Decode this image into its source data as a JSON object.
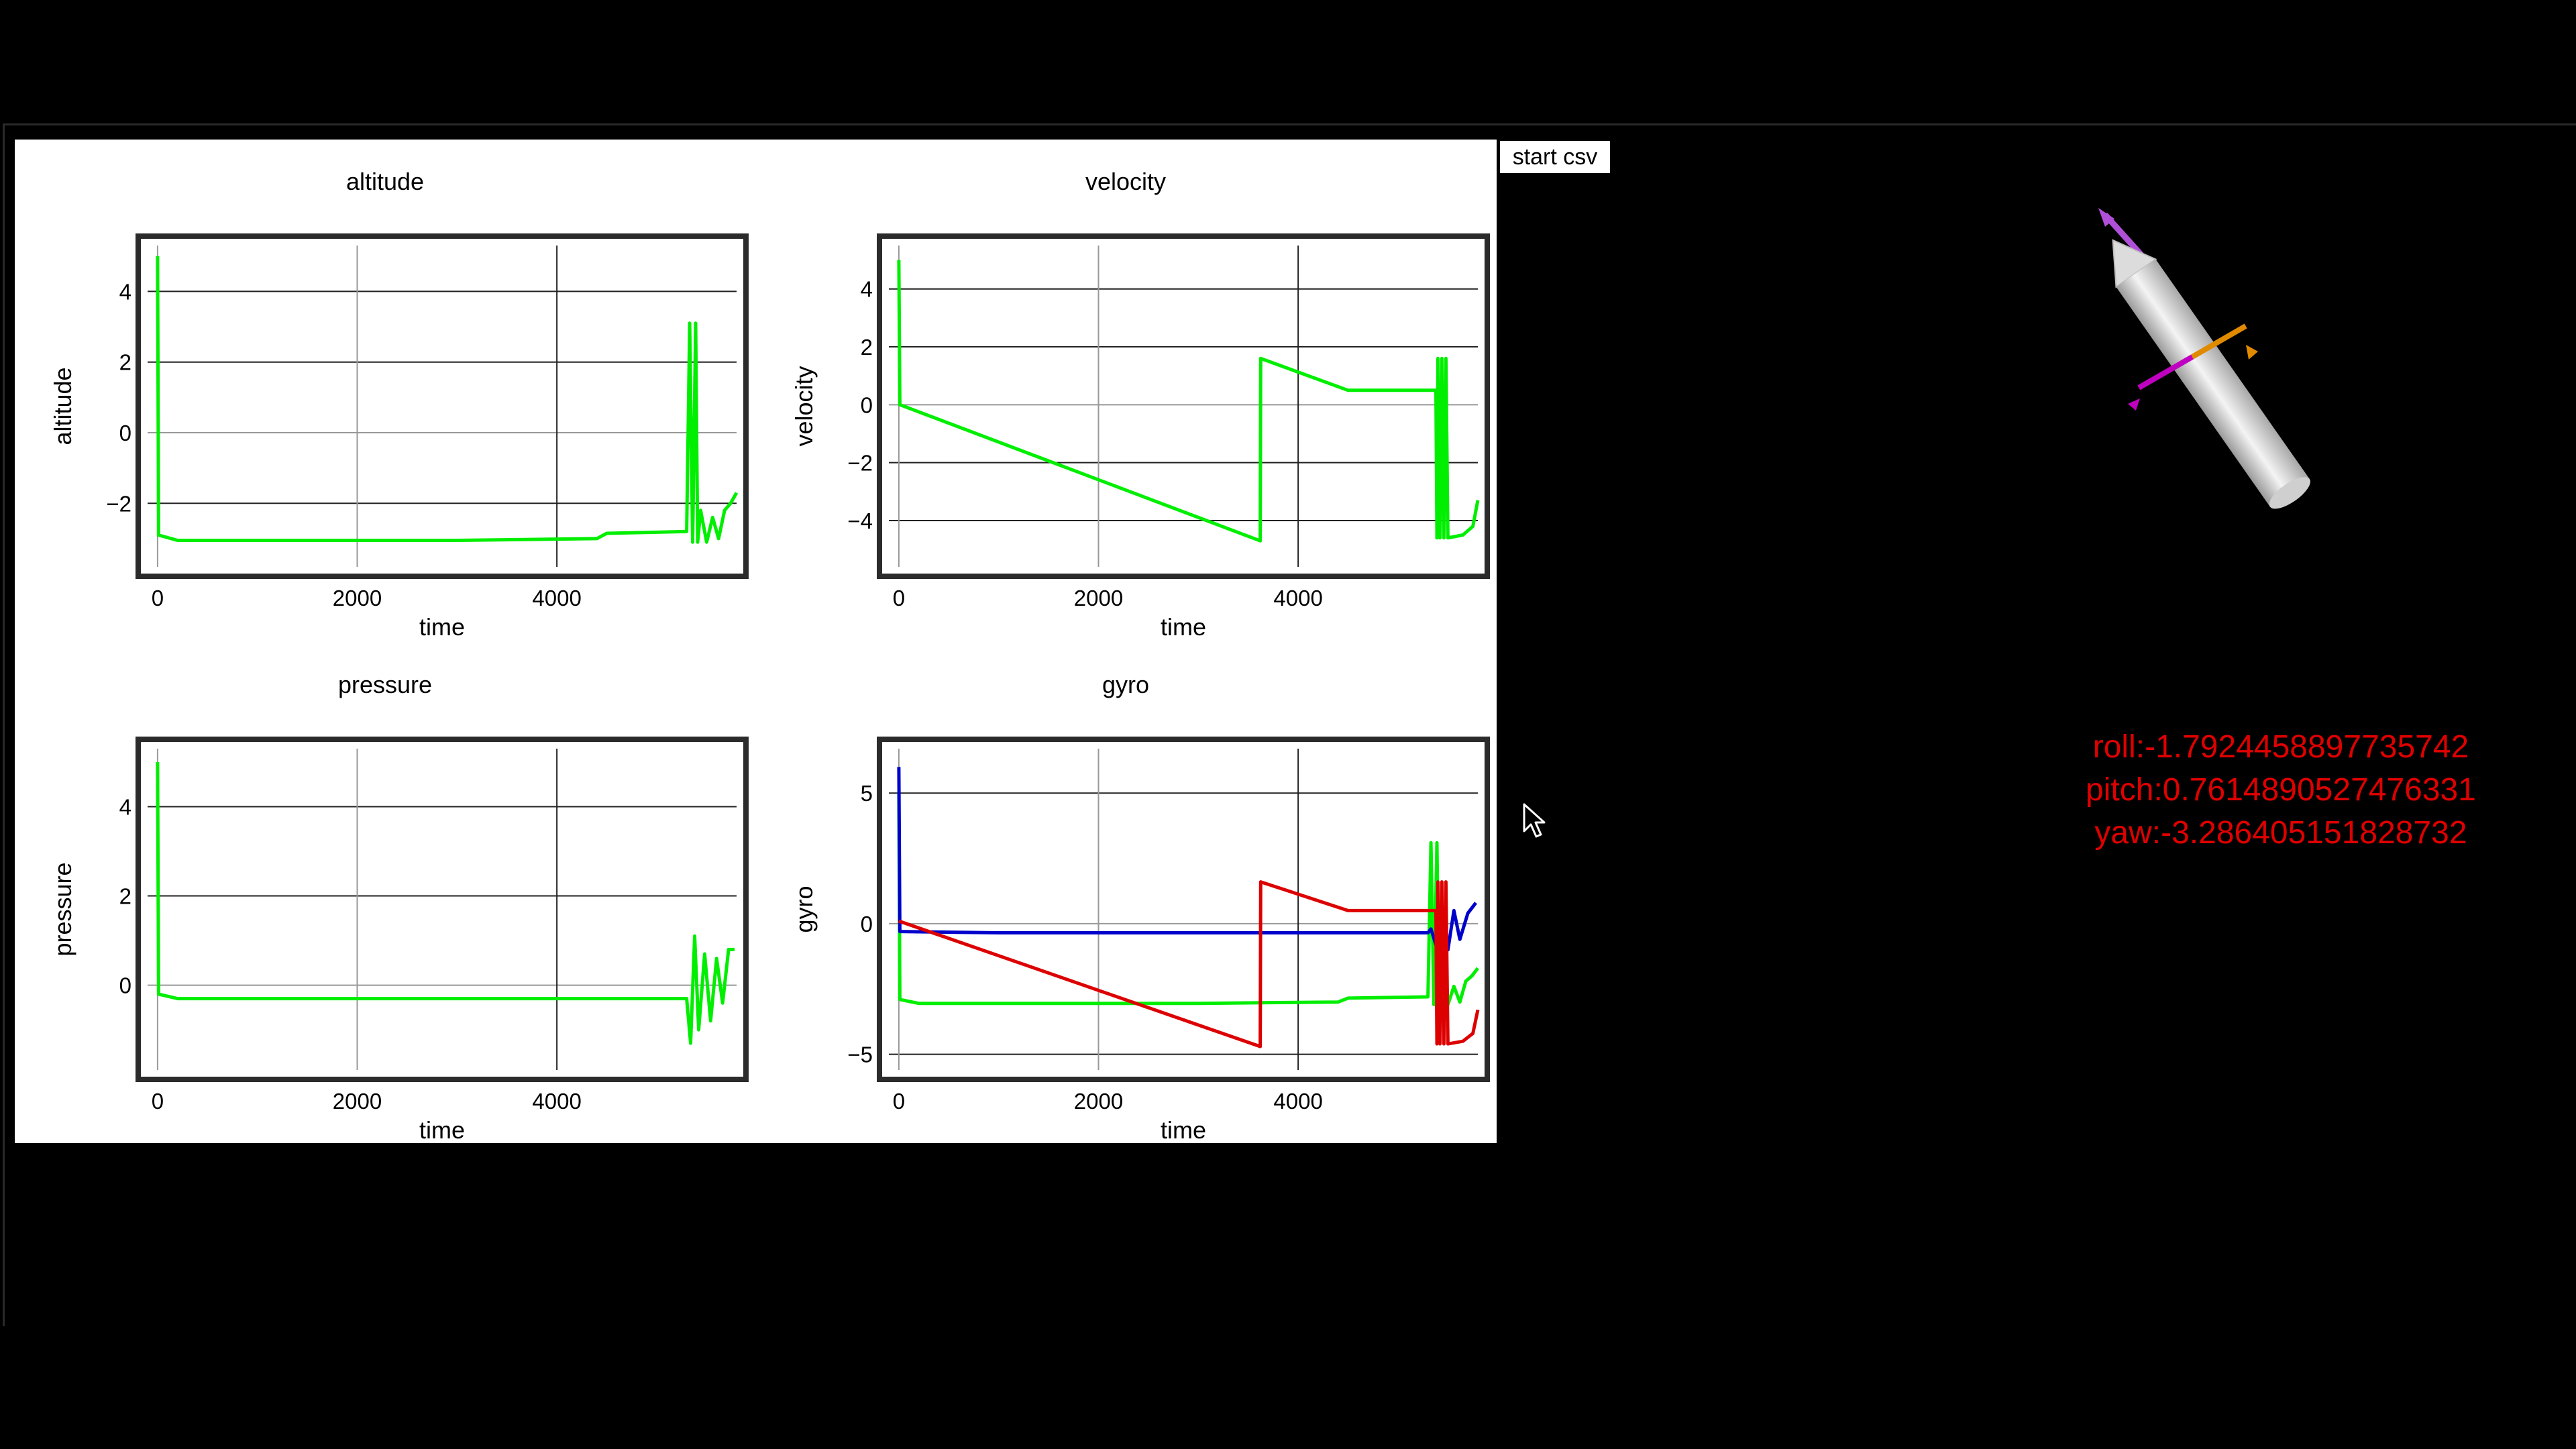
{
  "toolbar": {
    "start_csv_label": "start csv"
  },
  "orientation": {
    "roll": "roll:-1.7924458897735742",
    "pitch": "pitch:0.7614890527476331",
    "yaw": "yaw:-3.286405151828732"
  },
  "colors": {
    "altitude": "#00ee00",
    "gyro_x": "#00ee00",
    "gyro_y": "#0000cc",
    "gyro_z": "#dd0000",
    "orientation_text": "#e00000"
  },
  "icons": {
    "cursor": "mouse-pointer-icon",
    "rocket": "rocket-model"
  },
  "chart_data": [
    {
      "type": "line",
      "title": "altitude",
      "xlabel": "time",
      "ylabel": "altitude",
      "xlim": [
        -100,
        5800
      ],
      "ylim": [
        -3.8,
        5.3
      ],
      "xticks": [
        0,
        2000,
        4000
      ],
      "yticks": [
        -2,
        0,
        2,
        4
      ],
      "grid": true,
      "series": [
        {
          "color": "#00ee00",
          "points": [
            [
              0,
              5
            ],
            [
              10,
              -2.9
            ],
            [
              200,
              -3.05
            ],
            [
              1500,
              -3.05
            ],
            [
              3000,
              -3.05
            ],
            [
              4400,
              -3.0
            ],
            [
              4500,
              -2.85
            ],
            [
              5300,
              -2.8
            ],
            [
              5330,
              3.1
            ],
            [
              5360,
              -3.1
            ],
            [
              5390,
              3.1
            ],
            [
              5410,
              -3.1
            ],
            [
              5440,
              -2.2
            ],
            [
              5500,
              -3.1
            ],
            [
              5560,
              -2.4
            ],
            [
              5620,
              -3.0
            ],
            [
              5680,
              -2.2
            ],
            [
              5740,
              -2.0
            ],
            [
              5800,
              -1.7
            ]
          ]
        }
      ]
    },
    {
      "type": "line",
      "title": "velocity",
      "xlabel": "time",
      "ylabel": "velocity",
      "xlim": [
        -100,
        5800
      ],
      "ylim": [
        -5.6,
        5.5
      ],
      "xticks": [
        0,
        2000,
        4000
      ],
      "yticks": [
        -4,
        -2,
        0,
        2,
        4
      ],
      "grid": true,
      "series": [
        {
          "color": "#00ee00",
          "points": [
            [
              0,
              5
            ],
            [
              10,
              0
            ],
            [
              3620,
              -4.7
            ],
            [
              3625,
              1.6
            ],
            [
              4500,
              0.5
            ],
            [
              5380,
              0.5
            ],
            [
              5390,
              -4.6
            ],
            [
              5400,
              1.6
            ],
            [
              5420,
              -4.6
            ],
            [
              5440,
              1.6
            ],
            [
              5460,
              -4.6
            ],
            [
              5480,
              1.6
            ],
            [
              5500,
              -4.6
            ],
            [
              5650,
              -4.5
            ],
            [
              5750,
              -4.2
            ],
            [
              5800,
              -3.3
            ]
          ]
        }
      ]
    },
    {
      "type": "line",
      "title": "pressure",
      "xlabel": "time",
      "ylabel": "pressure",
      "xlim": [
        -100,
        5800
      ],
      "ylim": [
        -1.9,
        5.3
      ],
      "xticks": [
        0,
        2000,
        4000
      ],
      "yticks": [
        0,
        2,
        4
      ],
      "grid": true,
      "series": [
        {
          "color": "#00ee00",
          "points": [
            [
              0,
              5
            ],
            [
              10,
              -0.2
            ],
            [
              200,
              -0.3
            ],
            [
              2000,
              -0.3
            ],
            [
              4000,
              -0.3
            ],
            [
              5300,
              -0.3
            ],
            [
              5340,
              -1.3
            ],
            [
              5380,
              1.1
            ],
            [
              5420,
              -1.0
            ],
            [
              5480,
              0.7
            ],
            [
              5540,
              -0.8
            ],
            [
              5600,
              0.6
            ],
            [
              5660,
              -0.4
            ],
            [
              5720,
              0.8
            ],
            [
              5780,
              0.8
            ]
          ]
        }
      ]
    },
    {
      "type": "line",
      "title": "gyro",
      "xlabel": "time",
      "ylabel": "gyro",
      "xlim": [
        -100,
        5800
      ],
      "ylim": [
        -5.6,
        6.7
      ],
      "xticks": [
        0,
        2000,
        4000
      ],
      "yticks": [
        -5,
        0,
        5
      ],
      "grid": true,
      "series": [
        {
          "color": "#00ee00",
          "points": [
            [
              0,
              5
            ],
            [
              10,
              -2.9
            ],
            [
              200,
              -3.05
            ],
            [
              3000,
              -3.05
            ],
            [
              4400,
              -3.0
            ],
            [
              4500,
              -2.85
            ],
            [
              5300,
              -2.8
            ],
            [
              5330,
              3.1
            ],
            [
              5360,
              -3.1
            ],
            [
              5390,
              3.1
            ],
            [
              5410,
              -3.1
            ],
            [
              5440,
              -2.2
            ],
            [
              5500,
              -3.1
            ],
            [
              5560,
              -2.4
            ],
            [
              5620,
              -3.0
            ],
            [
              5680,
              -2.2
            ],
            [
              5740,
              -2.0
            ],
            [
              5800,
              -1.7
            ]
          ]
        },
        {
          "color": "#0000cc",
          "points": [
            [
              0,
              6
            ],
            [
              10,
              -0.3
            ],
            [
              1000,
              -0.35
            ],
            [
              3000,
              -0.35
            ],
            [
              5300,
              -0.35
            ],
            [
              5330,
              -0.2
            ],
            [
              5380,
              -0.8
            ],
            [
              5440,
              0.3
            ],
            [
              5500,
              -1.0
            ],
            [
              5560,
              0.5
            ],
            [
              5620,
              -0.6
            ],
            [
              5700,
              0.4
            ],
            [
              5780,
              0.8
            ]
          ]
        },
        {
          "color": "#dd0000",
          "points": [
            [
              0,
              0.1
            ],
            [
              3620,
              -4.7
            ],
            [
              3625,
              1.6
            ],
            [
              4500,
              0.5
            ],
            [
              5380,
              0.5
            ],
            [
              5390,
              -4.6
            ],
            [
              5400,
              1.6
            ],
            [
              5420,
              -4.6
            ],
            [
              5440,
              1.6
            ],
            [
              5460,
              -4.6
            ],
            [
              5480,
              1.6
            ],
            [
              5500,
              -4.6
            ],
            [
              5650,
              -4.5
            ],
            [
              5750,
              -4.2
            ],
            [
              5800,
              -3.3
            ]
          ]
        }
      ]
    }
  ]
}
